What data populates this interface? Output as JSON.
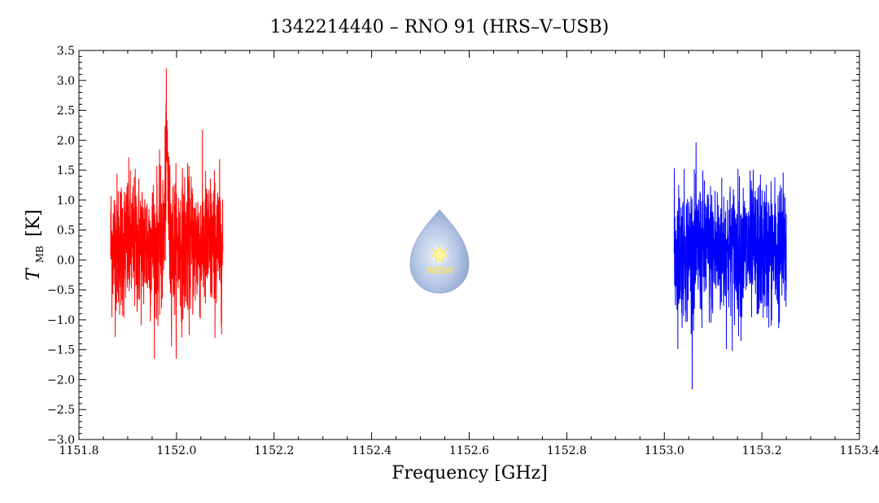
{
  "chart_data": {
    "type": "line",
    "title": "1342214440 – RNO 91 (HRS–V–USB)",
    "xlabel": "Frequency [GHz]",
    "ylabel_main": "T",
    "ylabel_sub": "MB",
    "ylabel_unit": "[K]",
    "xlim": [
      1151.8,
      1153.4
    ],
    "ylim": [
      -3.0,
      3.5
    ],
    "x_ticks": [
      1151.8,
      1152.0,
      1152.2,
      1152.4,
      1152.6,
      1152.8,
      1153.0,
      1153.2,
      1153.4
    ],
    "x_tick_labels": [
      "1151.8",
      "1152.0",
      "1152.2",
      "1152.4",
      "1152.6",
      "1152.8",
      "1153.0",
      "1153.2",
      "1153.4"
    ],
    "y_ticks": [
      -3.0,
      -2.5,
      -2.0,
      -1.5,
      -1.0,
      -0.5,
      0.0,
      0.5,
      1.0,
      1.5,
      2.0,
      2.5,
      3.0,
      3.5
    ],
    "y_tick_labels": [
      "−3.0",
      "−2.5",
      "−2.0",
      "−1.5",
      "−1.0",
      "−0.5",
      "0.0",
      "0.5",
      "1.0",
      "1.5",
      "2.0",
      "2.5",
      "3.0",
      "3.5"
    ],
    "grid": false,
    "series": [
      {
        "color": "#ff0000",
        "x_range": [
          1151.865,
          1152.095
        ],
        "summary": {
          "mean": 0.25,
          "min": -1.65,
          "max": 3.2,
          "peak_x": 1151.98
        }
      },
      {
        "color": "#0000ff",
        "x_range": [
          1153.02,
          1153.25
        ],
        "summary": {
          "mean": 0.15,
          "min": -2.45,
          "max": 2.3,
          "peak_x": 1153.03
        }
      }
    ],
    "logo": {
      "text": "WISH"
    }
  }
}
